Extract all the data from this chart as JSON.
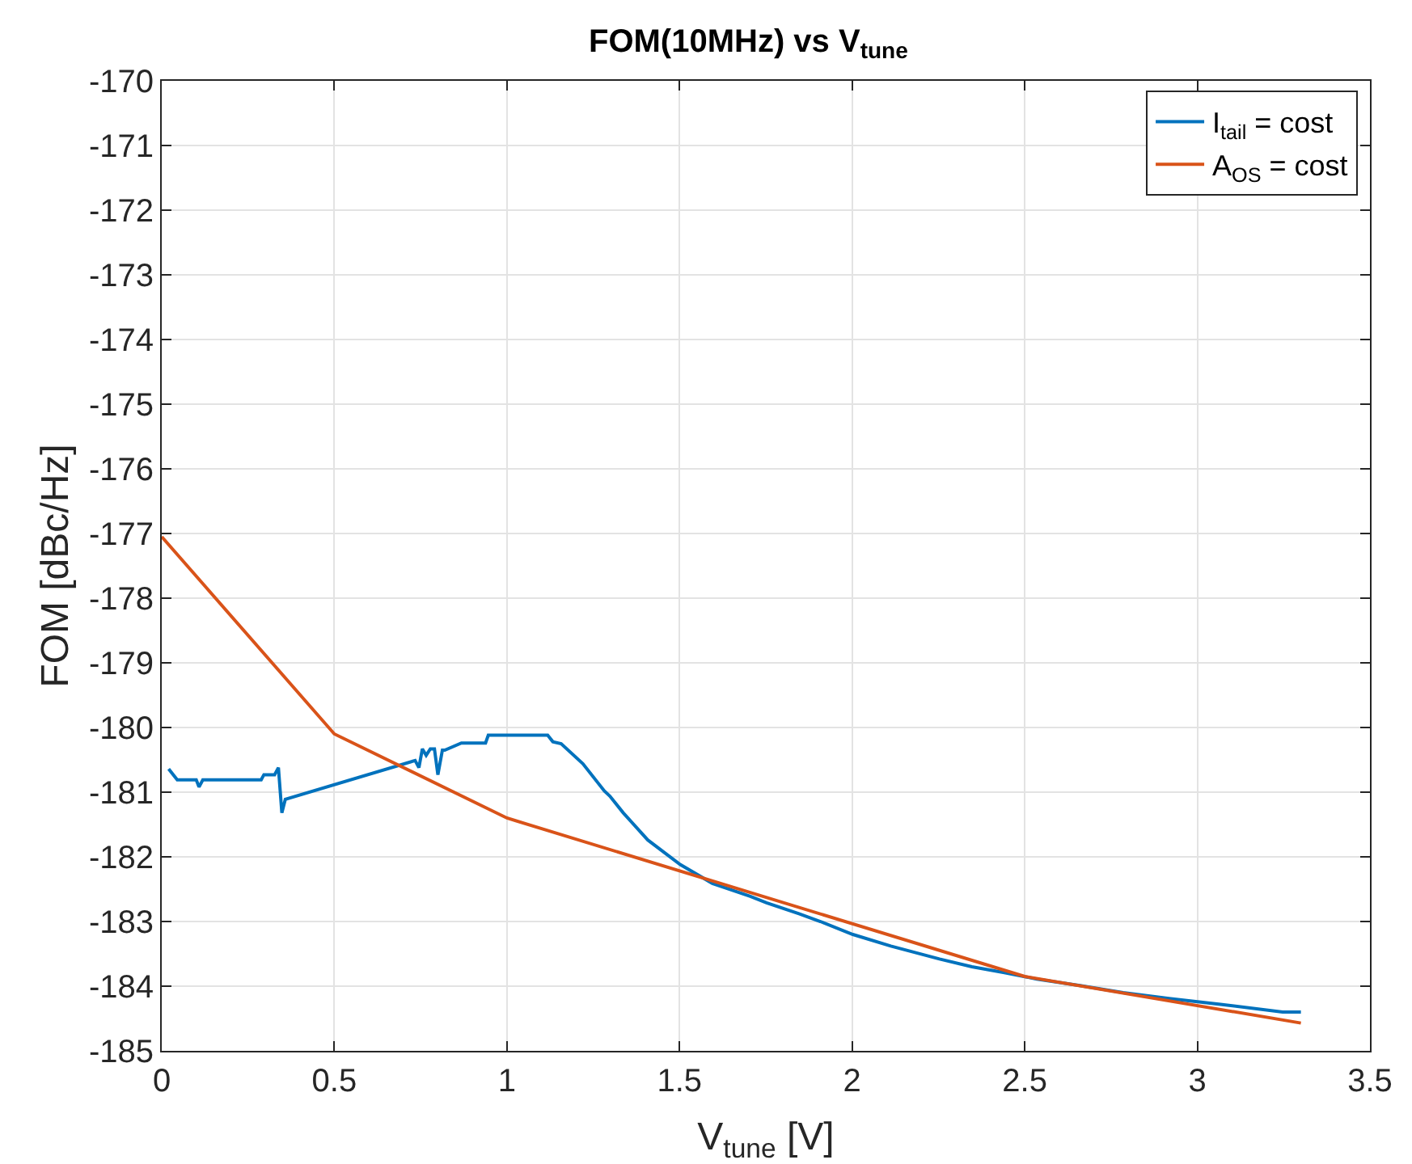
{
  "chart_data": {
    "type": "line",
    "title": "FOM(10MHz) vs V$_{tune}$",
    "xlabel": "V$_{tune}$ [V]",
    "ylabel": "FOM [dBc/Hz]",
    "xlim": [
      0,
      3.5
    ],
    "xticks": [
      0,
      0.5,
      1,
      1.5,
      2,
      2.5,
      3,
      3.5
    ],
    "ylim": [
      -185,
      -170
    ],
    "yticks": [
      -185,
      -184,
      -183,
      -182,
      -181,
      -180,
      -179,
      -178,
      -177,
      -176,
      -175,
      -174,
      -173,
      -172,
      -171,
      -170
    ],
    "grid": true,
    "legend": "top right",
    "line_style": "solid",
    "marker": "none",
    "series": [
      {
        "name": "I$_{tail}$ = cost",
        "color": "#0072bd",
        "x": [
          0.02,
          0.045,
          0.1,
          0.108,
          0.119,
          0.288,
          0.296,
          0.327,
          0.338,
          0.348,
          0.358,
          0.734,
          0.745,
          0.755,
          0.766,
          0.778,
          0.79,
          0.8,
          0.813,
          0.82,
          0.868,
          0.938,
          0.946,
          1.118,
          1.133,
          1.157,
          1.22,
          1.282,
          1.298,
          1.337,
          1.408,
          1.502,
          1.595,
          1.705,
          1.752,
          1.846,
          1.908,
          2.002,
          2.112,
          2.253,
          2.347,
          2.441,
          2.535,
          2.66,
          2.785,
          2.918,
          3.067,
          3.247,
          3.3
        ],
        "values": [
          -180.64,
          -180.81,
          -180.81,
          -180.92,
          -180.81,
          -180.81,
          -180.73,
          -180.73,
          -180.62,
          -181.32,
          -181.11,
          -180.51,
          -180.62,
          -180.33,
          -180.43,
          -180.33,
          -180.33,
          -180.73,
          -180.35,
          -180.35,
          -180.24,
          -180.24,
          -180.12,
          -180.12,
          -180.22,
          -180.25,
          -180.56,
          -180.98,
          -181.06,
          -181.32,
          -181.74,
          -182.12,
          -182.41,
          -182.61,
          -182.71,
          -182.88,
          -183.0,
          -183.2,
          -183.38,
          -183.58,
          -183.7,
          -183.79,
          -183.89,
          -183.99,
          -184.1,
          -184.19,
          -184.28,
          -184.4,
          -184.4
        ]
      },
      {
        "name": "A$_{OS}$ = cost",
        "color": "#d95319",
        "x": [
          0,
          0.5,
          1,
          2.5,
          3.3
        ],
        "values": [
          -177.05,
          -180.1,
          -181.4,
          -183.85,
          -184.57
        ]
      }
    ]
  }
}
